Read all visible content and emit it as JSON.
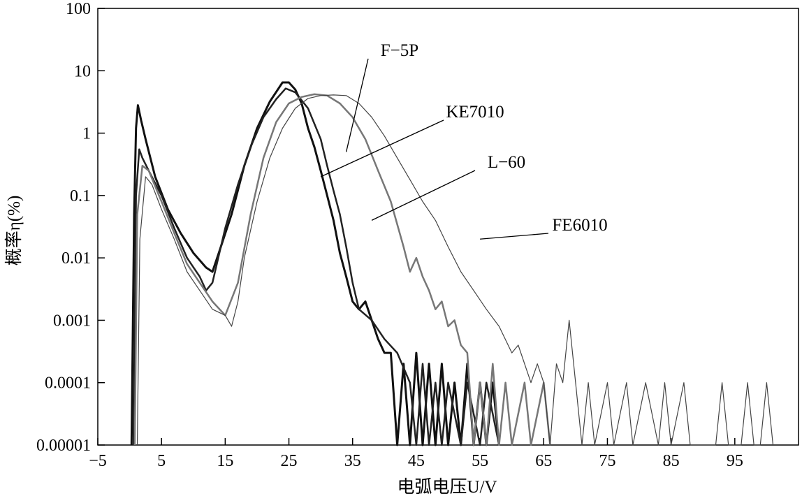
{
  "chart_data": {
    "type": "line",
    "title": "",
    "xlabel": "电弧电压U/V",
    "ylabel": "概率η(%)",
    "xlim": [
      -5,
      105
    ],
    "ylim": [
      1e-05,
      100
    ],
    "yscale": "log",
    "x_ticks": [
      -5,
      5,
      15,
      25,
      35,
      45,
      55,
      65,
      75,
      85,
      95
    ],
    "x_tick_labels": [
      "−5",
      "5",
      "15",
      "25",
      "35",
      "45",
      "55",
      "65",
      "75",
      "85",
      "95"
    ],
    "y_ticks": [
      1e-05,
      0.0001,
      0.001,
      0.01,
      0.1,
      1,
      10,
      100
    ],
    "y_tick_labels": [
      "0.00001",
      "0.0001",
      "0.001",
      "0.01",
      "0.1",
      "1",
      "10",
      "100"
    ],
    "grid": false,
    "legend": "callout labels with leader lines",
    "series": [
      {
        "name": "F−5P",
        "color": "#111111",
        "label_anchor": [
          34,
          0.5
        ],
        "points": [
          [
            0.3,
            1e-05
          ],
          [
            0.7,
            0.05
          ],
          [
            1,
            1.2
          ],
          [
            1.3,
            2.8
          ],
          [
            1.8,
            1.6
          ],
          [
            2.5,
            0.8
          ],
          [
            4,
            0.2
          ],
          [
            6,
            0.06
          ],
          [
            8,
            0.025
          ],
          [
            10,
            0.012
          ],
          [
            12,
            0.007
          ],
          [
            13,
            0.006
          ],
          [
            14,
            0.012
          ],
          [
            16,
            0.05
          ],
          [
            18,
            0.3
          ],
          [
            20,
            1.2
          ],
          [
            22,
            3.2
          ],
          [
            24,
            6.5
          ],
          [
            25,
            6.5
          ],
          [
            26,
            5
          ],
          [
            27,
            3
          ],
          [
            28,
            1.2
          ],
          [
            29,
            0.6
          ],
          [
            30,
            0.25
          ],
          [
            31,
            0.1
          ],
          [
            32,
            0.04
          ],
          [
            33,
            0.012
          ],
          [
            34,
            0.005
          ],
          [
            35,
            0.002
          ],
          [
            36,
            0.0015
          ],
          [
            37,
            0.002
          ],
          [
            38,
            0.001
          ],
          [
            39,
            0.0005
          ],
          [
            40,
            0.0003
          ],
          [
            41,
            0.0003
          ],
          [
            42,
            1e-05
          ],
          [
            43,
            0.0002
          ],
          [
            44,
            1e-05
          ],
          [
            45,
            0.0003
          ],
          [
            46,
            1e-05
          ],
          [
            47,
            0.0002
          ],
          [
            48,
            1e-05
          ],
          [
            49,
            0.0002
          ],
          [
            50,
            1e-05
          ],
          [
            51,
            0.0001
          ],
          [
            52,
            1e-05
          ],
          [
            53,
            0.0002
          ],
          [
            54,
            1e-05
          ],
          [
            55,
            0.0001
          ],
          [
            56,
            1e-05
          ],
          [
            57,
            0.0001
          ],
          [
            58,
            1e-05
          ]
        ]
      },
      {
        "name": "KE7010",
        "color": "#222222",
        "label_anchor": [
          30,
          0.2
        ],
        "points": [
          [
            0.6,
            1e-05
          ],
          [
            1,
            0.1
          ],
          [
            1.5,
            0.55
          ],
          [
            2,
            0.4
          ],
          [
            3,
            0.25
          ],
          [
            5,
            0.1
          ],
          [
            7,
            0.03
          ],
          [
            9,
            0.01
          ],
          [
            11,
            0.005
          ],
          [
            12,
            0.003
          ],
          [
            13,
            0.004
          ],
          [
            15,
            0.03
          ],
          [
            17,
            0.15
          ],
          [
            19,
            0.6
          ],
          [
            21,
            1.8
          ],
          [
            23,
            3.5
          ],
          [
            24.5,
            5.2
          ],
          [
            26,
            4.5
          ],
          [
            28,
            2.5
          ],
          [
            30,
            0.8
          ],
          [
            31,
            0.3
          ],
          [
            32,
            0.12
          ],
          [
            33,
            0.05
          ],
          [
            34,
            0.015
          ],
          [
            35,
            0.004
          ],
          [
            36,
            0.0015
          ],
          [
            38,
            0.001
          ],
          [
            40,
            0.0005
          ],
          [
            42,
            0.0003
          ],
          [
            44,
            0.0001
          ],
          [
            45,
            1e-05
          ],
          [
            46,
            0.0002
          ],
          [
            47,
            1e-05
          ],
          [
            48,
            0.0001
          ],
          [
            49,
            1e-05
          ],
          [
            50,
            0.0001
          ],
          [
            52,
            1e-05
          ],
          [
            53,
            0.0001
          ],
          [
            55,
            1e-05
          ],
          [
            56,
            0.0001
          ],
          [
            58,
            1e-05
          ]
        ]
      },
      {
        "name": "L−60",
        "color": "#777777",
        "label_anchor": [
          38,
          0.04
        ],
        "points": [
          [
            0.8,
            1e-05
          ],
          [
            1.2,
            0.05
          ],
          [
            2,
            0.3
          ],
          [
            3,
            0.25
          ],
          [
            5,
            0.08
          ],
          [
            7,
            0.025
          ],
          [
            9,
            0.008
          ],
          [
            11,
            0.004
          ],
          [
            13,
            0.002
          ],
          [
            15,
            0.0012
          ],
          [
            17,
            0.004
          ],
          [
            19,
            0.05
          ],
          [
            21,
            0.4
          ],
          [
            23,
            1.5
          ],
          [
            25,
            3
          ],
          [
            27,
            3.8
          ],
          [
            29,
            4.2
          ],
          [
            31,
            4
          ],
          [
            33,
            3
          ],
          [
            35,
            1.8
          ],
          [
            37,
            0.8
          ],
          [
            39,
            0.25
          ],
          [
            41,
            0.08
          ],
          [
            43,
            0.015
          ],
          [
            44,
            0.006
          ],
          [
            45,
            0.01
          ],
          [
            46,
            0.005
          ],
          [
            47,
            0.003
          ],
          [
            48,
            0.0015
          ],
          [
            49,
            0.002
          ],
          [
            50,
            0.0008
          ],
          [
            51,
            0.001
          ],
          [
            52,
            0.0004
          ],
          [
            53,
            0.0003
          ],
          [
            54,
            1e-05
          ],
          [
            55,
            0.0001
          ],
          [
            56,
            1e-05
          ],
          [
            57,
            0.0002
          ],
          [
            58,
            1e-05
          ],
          [
            59,
            0.0001
          ],
          [
            60,
            1e-05
          ],
          [
            62,
            0.0001
          ],
          [
            63,
            1e-05
          ],
          [
            65,
            0.0001
          ],
          [
            66,
            1e-05
          ]
        ]
      },
      {
        "name": "FE6010",
        "color": "#444444",
        "label_anchor": [
          55,
          0.02
        ],
        "points": [
          [
            1.2,
            1e-05
          ],
          [
            1.6,
            0.02
          ],
          [
            2.5,
            0.2
          ],
          [
            3.5,
            0.15
          ],
          [
            5,
            0.06
          ],
          [
            7,
            0.02
          ],
          [
            9,
            0.006
          ],
          [
            11,
            0.003
          ],
          [
            13,
            0.0015
          ],
          [
            15,
            0.0012
          ],
          [
            16,
            0.0008
          ],
          [
            17,
            0.002
          ],
          [
            18,
            0.01
          ],
          [
            20,
            0.08
          ],
          [
            22,
            0.4
          ],
          [
            24,
            1.2
          ],
          [
            26,
            2.5
          ],
          [
            28,
            3.6
          ],
          [
            30,
            4
          ],
          [
            32,
            4.1
          ],
          [
            34,
            4
          ],
          [
            36,
            3
          ],
          [
            38,
            1.8
          ],
          [
            40,
            0.9
          ],
          [
            42,
            0.4
          ],
          [
            44,
            0.18
          ],
          [
            46,
            0.08
          ],
          [
            48,
            0.04
          ],
          [
            50,
            0.015
          ],
          [
            52,
            0.006
          ],
          [
            54,
            0.003
          ],
          [
            56,
            0.0015
          ],
          [
            58,
            0.0008
          ],
          [
            60,
            0.0003
          ],
          [
            61,
            0.0004
          ],
          [
            62,
            0.0002
          ],
          [
            63,
            0.0001
          ],
          [
            64,
            0.0002
          ],
          [
            65,
            0.0001
          ],
          [
            66,
            1e-05
          ],
          [
            67,
            0.0002
          ],
          [
            68,
            0.0001
          ],
          [
            69,
            0.001
          ],
          [
            70,
            0.0001
          ],
          [
            71,
            1e-05
          ],
          [
            72,
            0.0001
          ],
          [
            73,
            1e-05
          ],
          [
            75,
            0.0001
          ],
          [
            76,
            1e-05
          ],
          [
            78,
            0.0001
          ],
          [
            79,
            1e-05
          ],
          [
            81,
            0.0001
          ],
          [
            83,
            1e-05
          ],
          [
            84,
            0.0001
          ],
          [
            85,
            1e-05
          ],
          [
            87,
            0.0001
          ],
          [
            88,
            1e-05
          ],
          [
            92,
            1e-05
          ],
          [
            93,
            0.0001
          ],
          [
            94,
            1e-05
          ],
          [
            96,
            1e-05
          ],
          [
            97,
            0.0001
          ],
          [
            98,
            1e-05
          ],
          [
            99,
            1e-05
          ],
          [
            100,
            0.0001
          ],
          [
            101,
            1e-05
          ]
        ]
      }
    ]
  }
}
